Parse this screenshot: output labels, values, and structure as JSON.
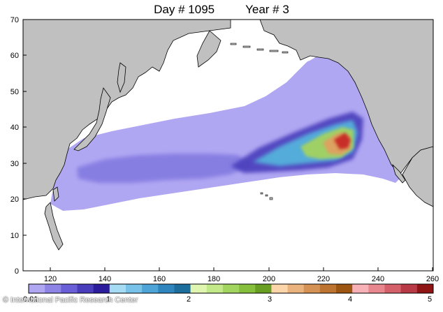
{
  "title": {
    "day": "Day # 1095",
    "year": "Year # 3"
  },
  "axes": {
    "y_ticks": [
      "0",
      "10",
      "20",
      "30",
      "40",
      "50",
      "60",
      "70"
    ],
    "x_ticks": [
      "120",
      "140",
      "160",
      "180",
      "200",
      "220",
      "240",
      "260"
    ]
  },
  "colorbar": {
    "labels": [
      "0.01",
      "1",
      "2",
      "3",
      "4",
      "5"
    ],
    "colors": [
      "#b0a7f3",
      "#8d84e6",
      "#6a5fd6",
      "#4a3dbb",
      "#2a1c9a",
      "#a5dcf4",
      "#78c2ea",
      "#4ea4d6",
      "#2f86bf",
      "#1c6d9c",
      "#dff5b0",
      "#c3e88a",
      "#a2d460",
      "#85bf3c",
      "#689f22",
      "#fcd5a8",
      "#eab37e",
      "#d49255",
      "#bd7431",
      "#9c5612",
      "#f8b1b6",
      "#e8888e",
      "#d4606a",
      "#b83a46",
      "#8f1515"
    ]
  },
  "map": {
    "land_color": "#c0c0c0",
    "ocean_color": "#ffffff",
    "debris_low_color": "#b0a7f3",
    "debris_mid_color": "#4a3dbb",
    "debris_high_color": "#c62020"
  },
  "credit": "© International Pacific Research Center"
}
